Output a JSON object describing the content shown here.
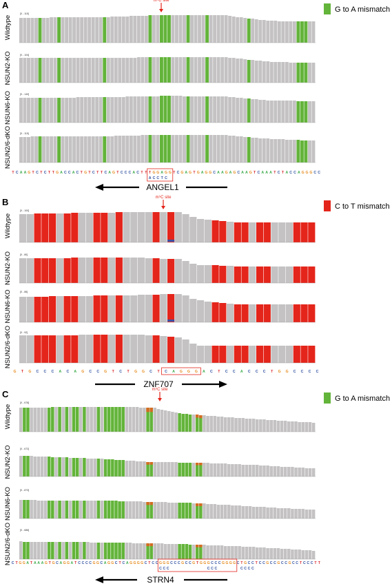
{
  "colors": {
    "gray": "#c4c2c3",
    "green": "#63b43a",
    "red": "#e4251b",
    "orange": "#d36b22",
    "blue": "#3e4fa3",
    "annotation": "#e4251b"
  },
  "base_colors": {
    "A": "#3bab4a",
    "C": "#2e4fa0",
    "G": "#e68a1b",
    "T": "#d9262b"
  },
  "site_label": "m⁵C site",
  "panels": [
    {
      "letter": "A",
      "legend": {
        "label": "G to A mismatch",
        "color": "green"
      },
      "tracks": [
        {
          "label": "Wildtype",
          "range": "[0 - 115]"
        },
        {
          "label": "NSUN2-KO",
          "range": "[0 - 104]"
        },
        {
          "label": "NSUN6-KO",
          "range": "[0 - 140]"
        },
        {
          "label": "NSUN2/6-dKO",
          "range": "[0 - 115]"
        }
      ],
      "sequence": "TCAAGTCTCTTGACCACTGTCTTCAGTCCCACTTTGGAGGTCGAGTGAGGCAAGAGCAAGTCAAATCTACCAGGGCC",
      "motif_box": "TGGAGG",
      "motif_below": "ACCTC",
      "gene": "ANGEL1",
      "gene_direction": "left"
    },
    {
      "letter": "B",
      "legend": {
        "label": "C to T mismatch",
        "color": "red"
      },
      "tracks": [
        {
          "label": "Wildtype",
          "range": "[0 - 100]"
        },
        {
          "label": "NSUN2-KO",
          "range": "[0 - 80]"
        },
        {
          "label": "NSUN6-KO",
          "range": "[0 - 86]"
        },
        {
          "label": "NSUN2/6-dKO",
          "range": "[0 - 92]"
        }
      ],
      "sequence": "GTGCCCACAGCCGTCTGGCTCAGGGACTCCACCCTGGCCCC",
      "motif_box": "CAGGG",
      "motif_below": "",
      "gene": "ZNF707",
      "gene_direction": "right"
    },
    {
      "letter": "C",
      "legend": {
        "label": "G to A mismatch",
        "color": "green"
      },
      "tracks": [
        {
          "label": "Wildtype",
          "range": "[0 - 678]"
        },
        {
          "label": "NSUN2-KO",
          "range": "[0 - 672]"
        },
        {
          "label": "NSUN6-KO",
          "range": "[0 - 873]"
        },
        {
          "label": "NSUN2/6-dKO",
          "range": "[0 - 686]"
        }
      ],
      "sequence": "CTGGATAAAGTGCAGGATCCCCGGCAGGCTCAGGGGCTCCGGGCCCGCCGTGGGCCCGGGGCTGCCTCCGCCGCCGCCTCCCTT",
      "motif_box": "GGGCCCGCCGTGGGCCCGGGG",
      "motif_below": "CCC          CCC      CCCC",
      "gene": "STRN4",
      "gene_direction": "left"
    }
  ]
}
